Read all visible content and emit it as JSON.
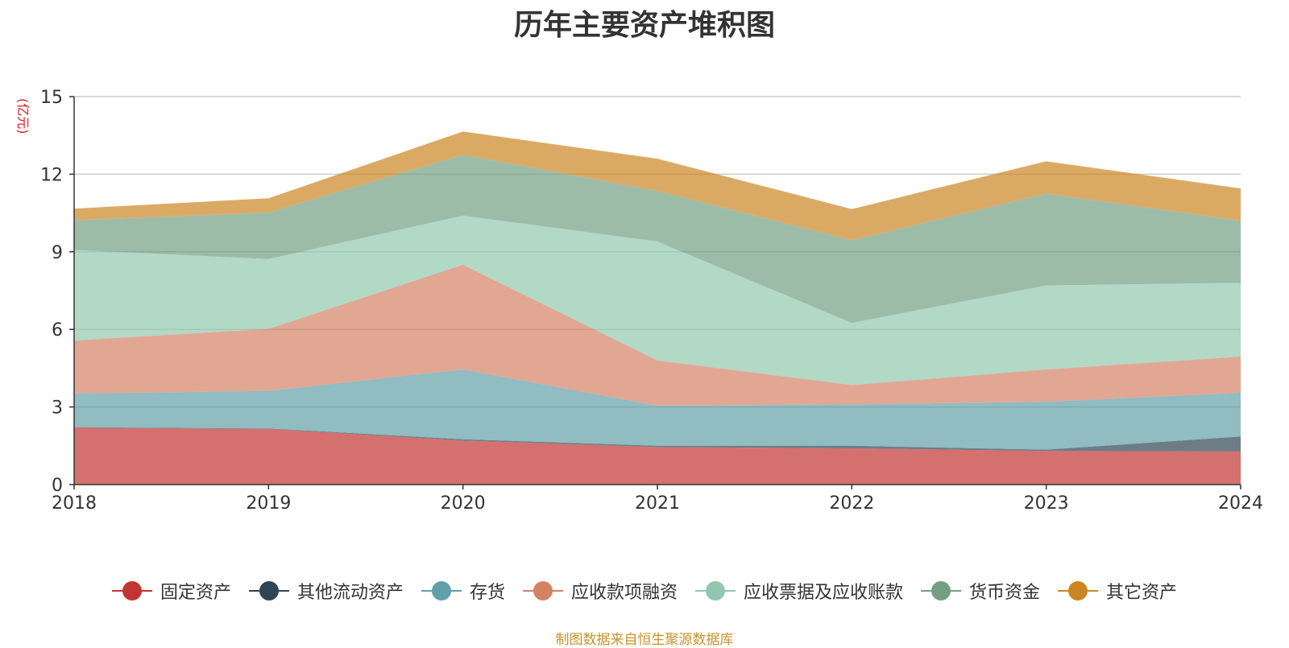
{
  "chart_data": {
    "type": "area",
    "stacked": true,
    "title": "历年主要资产堆积图",
    "ylabel": "(亿元)",
    "x": [
      "2018",
      "2019",
      "2020",
      "2021",
      "2022",
      "2023",
      "2024"
    ],
    "ylim": [
      0,
      15
    ],
    "yticks": [
      0,
      3,
      6,
      9,
      12,
      15
    ],
    "grid": true,
    "legend_position": "bottom",
    "series": [
      {
        "name": "固定资产",
        "color": "#c23531",
        "values": [
          2.2,
          2.15,
          1.7,
          1.45,
          1.4,
          1.3,
          1.28
        ]
      },
      {
        "name": "其他流动资产",
        "color": "#2f4554",
        "values": [
          0.02,
          0.02,
          0.05,
          0.05,
          0.1,
          0.05,
          0.58
        ]
      },
      {
        "name": "存货",
        "color": "#61a0a8",
        "values": [
          1.3,
          1.45,
          2.7,
          1.55,
          1.6,
          1.85,
          1.69
        ]
      },
      {
        "name": "应收款项融资",
        "color": "#d48265",
        "values": [
          2.05,
          2.4,
          4.05,
          1.75,
          0.75,
          1.25,
          1.4
        ]
      },
      {
        "name": "应收票据及应收账款",
        "color": "#91c7ae",
        "values": [
          3.5,
          2.7,
          1.9,
          4.6,
          2.4,
          3.25,
          2.85
        ]
      },
      {
        "name": "货币资金",
        "color": "#749f83",
        "values": [
          1.15,
          1.8,
          2.35,
          1.95,
          3.2,
          3.55,
          2.4
        ]
      },
      {
        "name": "其它资产",
        "color": "#ca8622",
        "values": [
          0.45,
          0.55,
          0.9,
          1.25,
          1.2,
          1.25,
          1.25
        ]
      }
    ]
  },
  "source_note": "制图数据来自恒生聚源数据库"
}
